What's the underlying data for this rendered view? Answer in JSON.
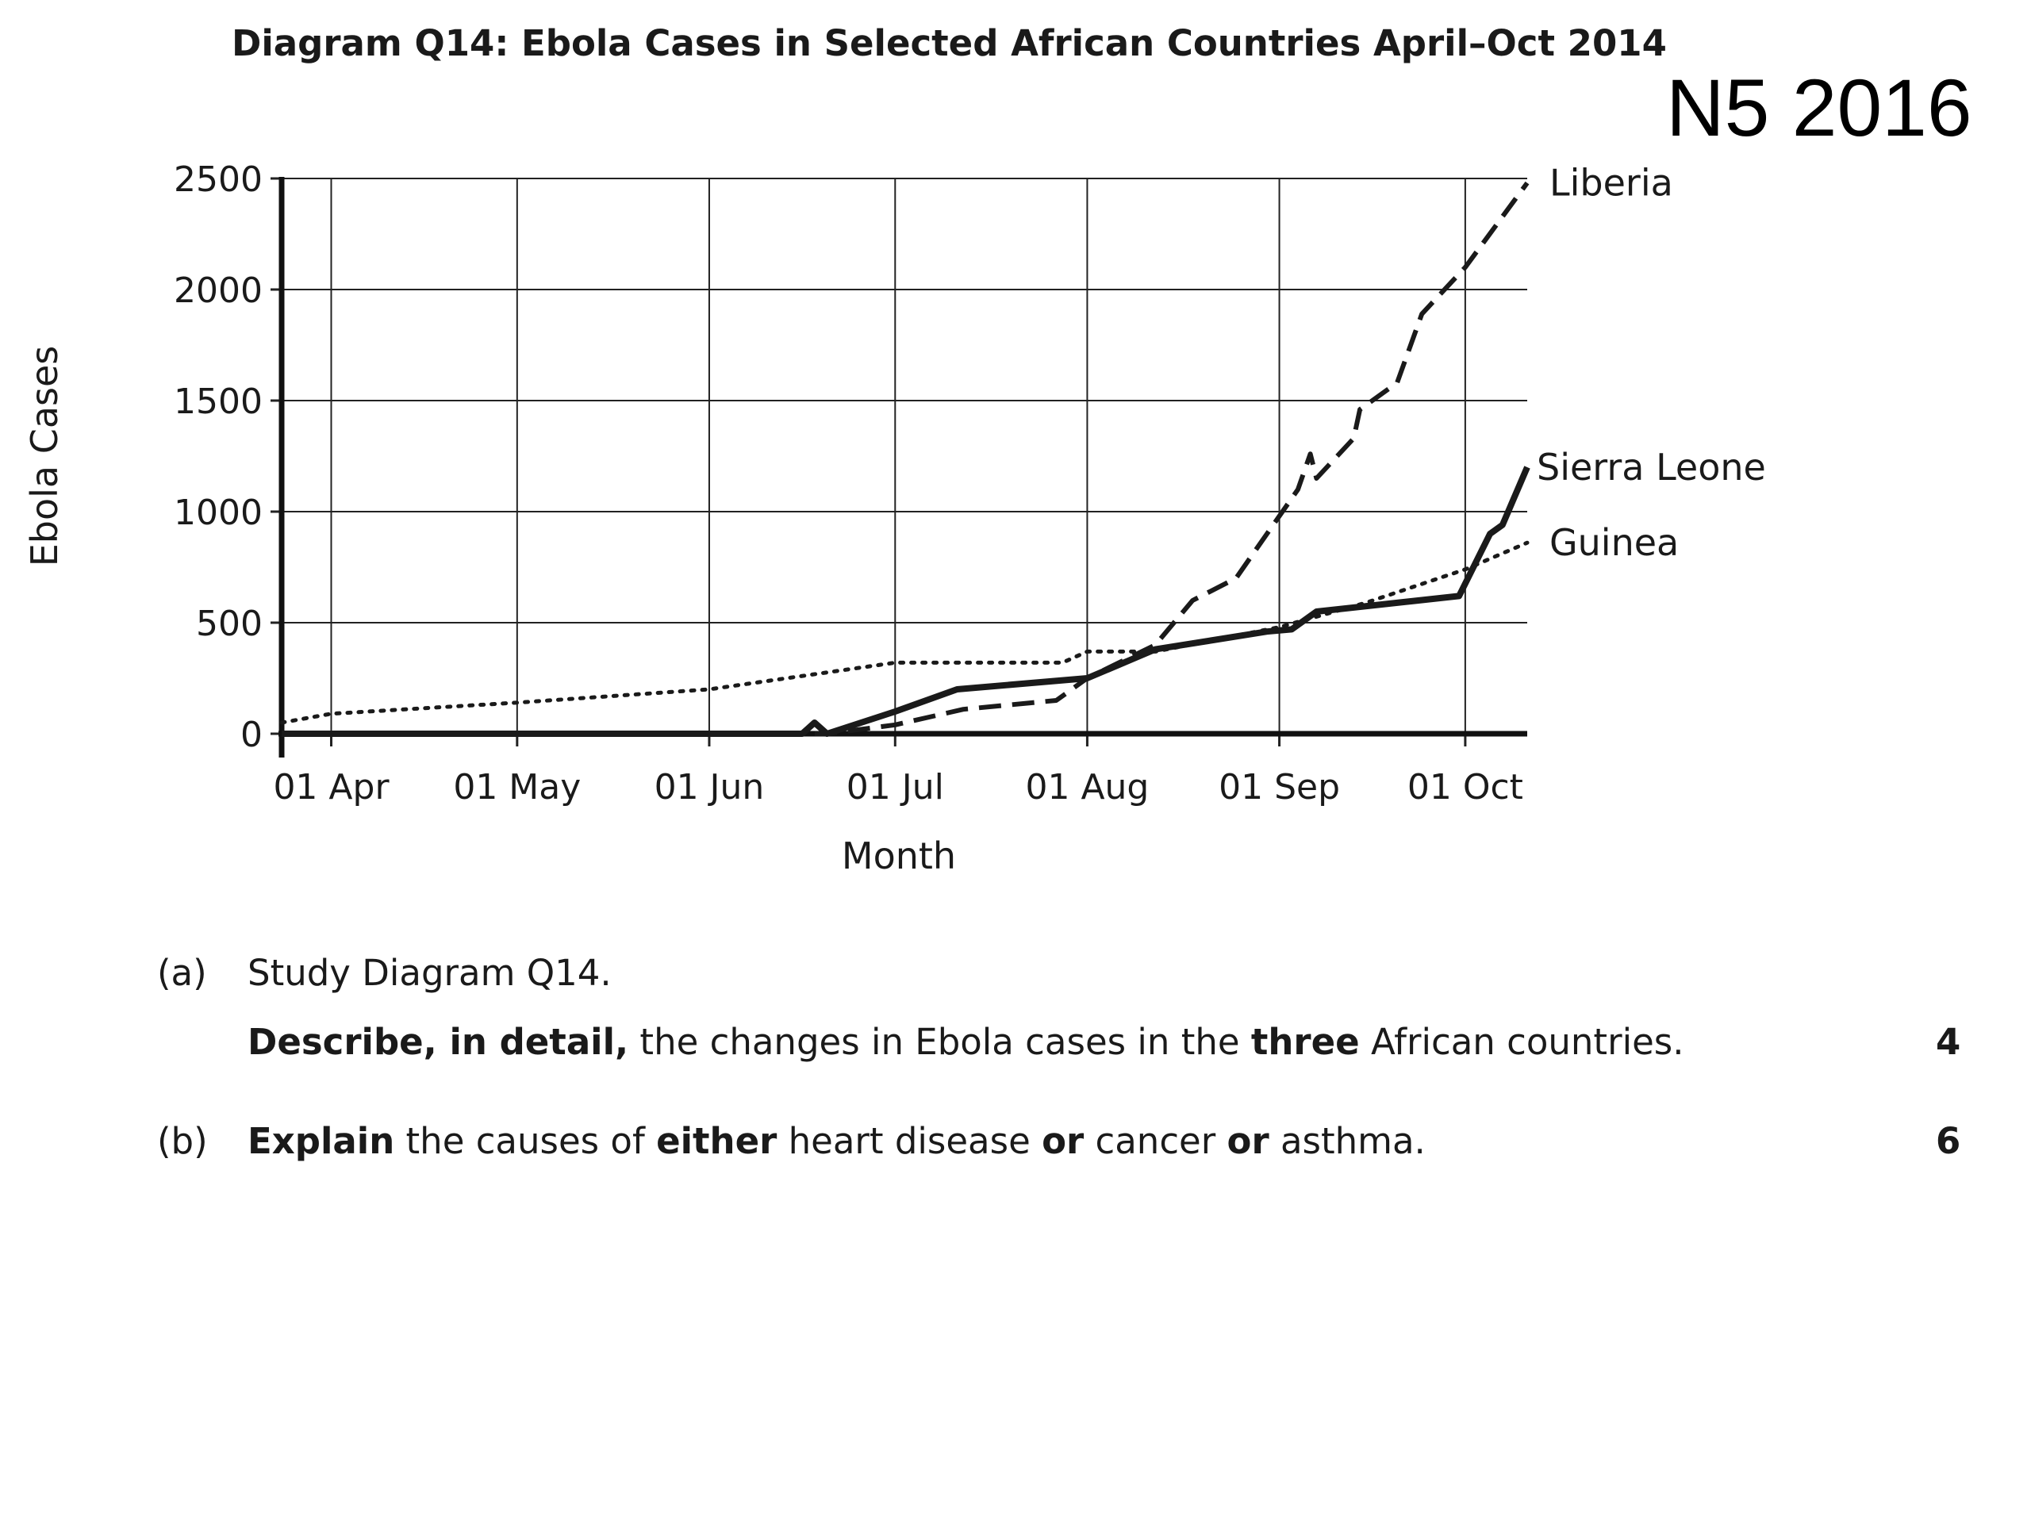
{
  "page": {
    "title": "Diagram Q14: Ebola Cases in Selected African Countries April–Oct 2014",
    "tag": "N5 2016"
  },
  "chart_data": {
    "type": "line",
    "title": "Diagram Q14: Ebola Cases in Selected African Countries April–Oct 2014",
    "xlabel": "Month",
    "ylabel": "Ebola Cases",
    "xlim": [
      "2014-03-24",
      "2014-10-11"
    ],
    "ylim": [
      0,
      2500
    ],
    "x_ticks": [
      {
        "date": "2014-04-01",
        "label": "01 Apr"
      },
      {
        "date": "2014-05-01",
        "label": "01 May"
      },
      {
        "date": "2014-06-01",
        "label": "01 Jun"
      },
      {
        "date": "2014-07-01",
        "label": "01 Jul"
      },
      {
        "date": "2014-08-01",
        "label": "01 Aug"
      },
      {
        "date": "2014-09-01",
        "label": "01 Sep"
      },
      {
        "date": "2014-10-01",
        "label": "01 Oct"
      }
    ],
    "y_ticks": [
      0,
      500,
      1000,
      1500,
      2000,
      2500
    ],
    "grid": true,
    "legend": "labels at line ends (right)",
    "series": [
      {
        "name": "Liberia",
        "style": "dashed",
        "points": [
          [
            "2014-03-24",
            0
          ],
          [
            "2014-06-20",
            0
          ],
          [
            "2014-07-01",
            40
          ],
          [
            "2014-07-12",
            110
          ],
          [
            "2014-07-27",
            150
          ],
          [
            "2014-08-01",
            250
          ],
          [
            "2014-08-12",
            400
          ],
          [
            "2014-08-18",
            600
          ],
          [
            "2014-08-25",
            700
          ],
          [
            "2014-09-04",
            1100
          ],
          [
            "2014-09-06",
            1260
          ],
          [
            "2014-09-07",
            1150
          ],
          [
            "2014-09-13",
            1330
          ],
          [
            "2014-09-14",
            1460
          ],
          [
            "2014-09-20",
            1580
          ],
          [
            "2014-09-24",
            1890
          ],
          [
            "2014-10-01",
            2100
          ],
          [
            "2014-10-11",
            2480
          ]
        ]
      },
      {
        "name": "Sierra Leone",
        "style": "solid",
        "points": [
          [
            "2014-03-24",
            0
          ],
          [
            "2014-06-16",
            0
          ],
          [
            "2014-06-18",
            50
          ],
          [
            "2014-06-20",
            0
          ],
          [
            "2014-07-01",
            100
          ],
          [
            "2014-07-11",
            200
          ],
          [
            "2014-08-01",
            250
          ],
          [
            "2014-08-12",
            380
          ],
          [
            "2014-08-30",
            460
          ],
          [
            "2014-09-03",
            470
          ],
          [
            "2014-09-07",
            550
          ],
          [
            "2014-09-30",
            620
          ],
          [
            "2014-10-05",
            900
          ],
          [
            "2014-10-07",
            940
          ],
          [
            "2014-10-11",
            1200
          ]
        ]
      },
      {
        "name": "Guinea",
        "style": "dotted",
        "points": [
          [
            "2014-03-24",
            50
          ],
          [
            "2014-04-01",
            90
          ],
          [
            "2014-05-01",
            140
          ],
          [
            "2014-06-01",
            200
          ],
          [
            "2014-07-01",
            320
          ],
          [
            "2014-07-28",
            320
          ],
          [
            "2014-08-01",
            370
          ],
          [
            "2014-08-12",
            370
          ],
          [
            "2014-09-01",
            480
          ],
          [
            "2014-09-15",
            590
          ],
          [
            "2014-10-01",
            740
          ],
          [
            "2014-10-11",
            860
          ]
        ]
      }
    ]
  },
  "questions": [
    {
      "label": "(a)",
      "line1": "Study Diagram Q14.",
      "line2_parts": [
        {
          "text": "Describe, in detail,",
          "bold": true
        },
        {
          "text": " the changes in Ebola cases in the ",
          "bold": false
        },
        {
          "text": "three",
          "bold": true
        },
        {
          "text": " African countries.",
          "bold": false
        }
      ],
      "marks": "4"
    },
    {
      "label": "(b)",
      "line1_parts": [
        {
          "text": "Explain",
          "bold": true
        },
        {
          "text": " the causes of ",
          "bold": false
        },
        {
          "text": "either",
          "bold": true
        },
        {
          "text": " heart disease ",
          "bold": false
        },
        {
          "text": "or",
          "bold": true
        },
        {
          "text": " cancer ",
          "bold": false
        },
        {
          "text": "or",
          "bold": true
        },
        {
          "text": " asthma.",
          "bold": false
        }
      ],
      "marks": "6"
    }
  ]
}
